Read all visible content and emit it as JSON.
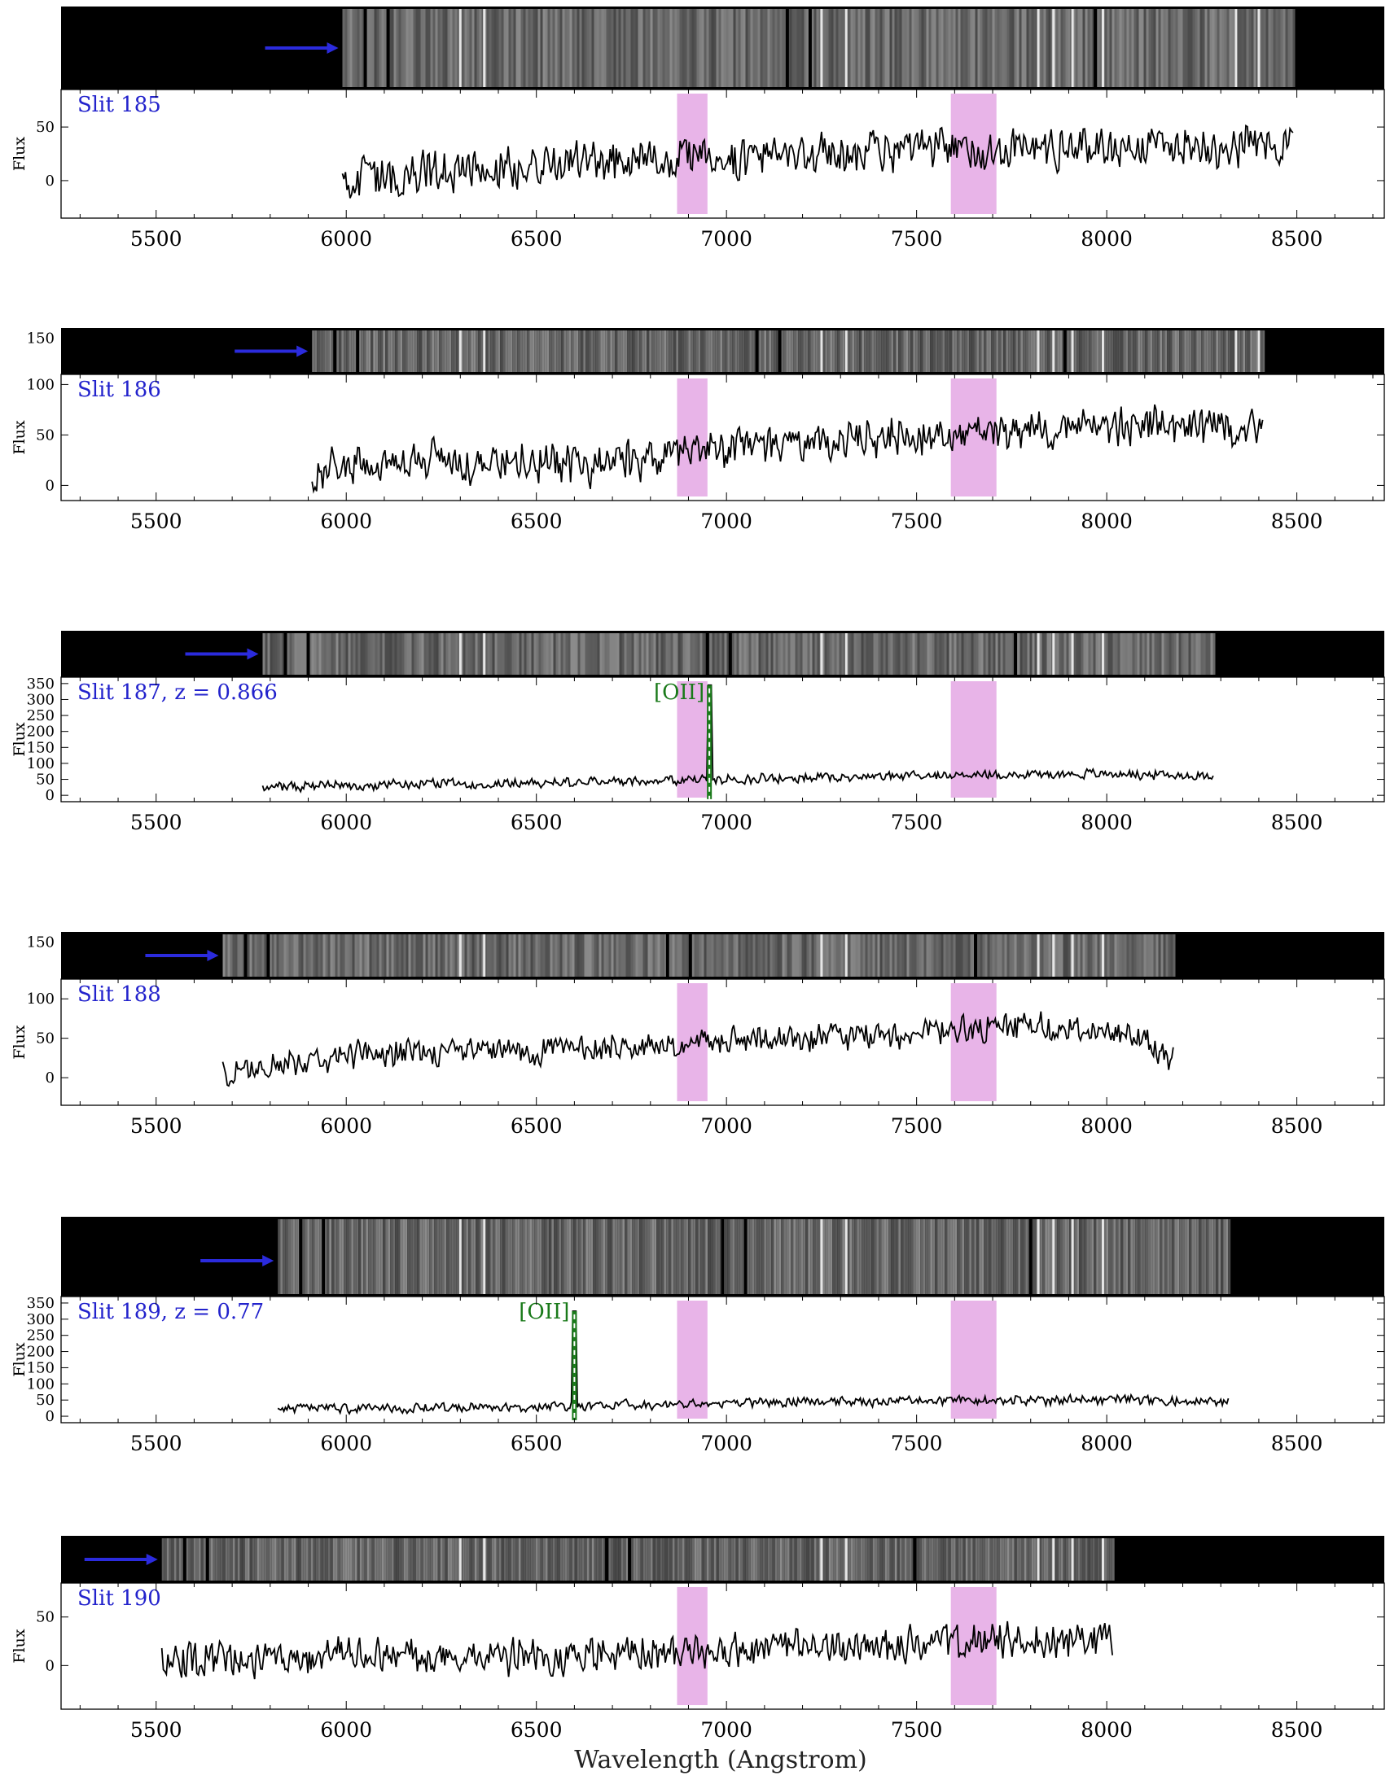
{
  "figure": {
    "xlabel": "Wavelength (Angstrom)",
    "ylabel": "Flux"
  },
  "colors": {
    "spectrum": "#000000",
    "telluric_band": "#e8b4e8",
    "slit_label": "#2222cc",
    "arrow": "#2b2bdd",
    "emission_line": "#1a7a1a",
    "image_bg": "#000000"
  },
  "chart_data": {
    "type": "line",
    "xlim": [
      5250,
      8730
    ],
    "x_ticks": [
      5500,
      6000,
      6500,
      7000,
      7500,
      8000,
      8500
    ],
    "x_tick_labels": [
      "5500",
      "6000",
      "6500",
      "7000",
      "7500",
      "8000",
      "8500"
    ],
    "telluric_bands": [
      [
        6870,
        6950
      ],
      [
        7590,
        7710
      ]
    ],
    "panels": [
      {
        "slit": "Slit 185",
        "wave_start": 5990,
        "wave_end": 8490,
        "ylim": [
          -35,
          85
        ],
        "y_ticks": [
          0,
          50
        ],
        "y_tick_labels": [
          "0",
          "50"
        ],
        "baseline": [
          [
            5990,
            0
          ],
          [
            6500,
            15
          ],
          [
            7000,
            22
          ],
          [
            7500,
            28
          ],
          [
            8000,
            32
          ],
          [
            8490,
            35
          ]
        ],
        "noise": 16,
        "seed": 185,
        "strip_image": true
      },
      {
        "slit": "Slit 186",
        "wave_start": 5910,
        "wave_end": 8410,
        "ylim": [
          -15,
          110
        ],
        "y_ticks": [
          0,
          50,
          100
        ],
        "y_tick_labels": [
          "0",
          "50",
          "100"
        ],
        "strip_ticks": [
          150
        ],
        "strip_tick_labels": [
          "150"
        ],
        "baseline": [
          [
            5910,
            15
          ],
          [
            6300,
            25
          ],
          [
            6700,
            20
          ],
          [
            7000,
            38
          ],
          [
            7500,
            50
          ],
          [
            8000,
            60
          ],
          [
            8410,
            55
          ]
        ],
        "noise": 16,
        "seed": 186,
        "strip_image": true
      },
      {
        "slit": "Slit 187, z = 0.866",
        "wave_start": 5780,
        "wave_end": 8280,
        "ylim": [
          -20,
          370
        ],
        "y_ticks": [
          0,
          50,
          100,
          150,
          200,
          250,
          300,
          350
        ],
        "y_tick_labels": [
          "0",
          "50",
          "100",
          "150",
          "200",
          "250",
          "300",
          "350"
        ],
        "baseline": [
          [
            5780,
            28
          ],
          [
            6500,
            40
          ],
          [
            7000,
            50
          ],
          [
            7500,
            62
          ],
          [
            8000,
            68
          ],
          [
            8280,
            60
          ]
        ],
        "noise": 12,
        "seed": 187,
        "line_label": "[OII]",
        "line_wave": 6955,
        "line_peak": 345,
        "strip_image": true
      },
      {
        "slit": "Slit 188",
        "wave_start": 5675,
        "wave_end": 8175,
        "ylim": [
          -35,
          125
        ],
        "y_ticks": [
          0,
          50,
          100
        ],
        "y_tick_labels": [
          "0",
          "50",
          "100"
        ],
        "strip_ticks": [
          150
        ],
        "strip_tick_labels": [
          "150"
        ],
        "baseline": [
          [
            5675,
            5
          ],
          [
            6000,
            30
          ],
          [
            6500,
            35
          ],
          [
            7000,
            45
          ],
          [
            7500,
            55
          ],
          [
            7800,
            68
          ],
          [
            8100,
            50
          ],
          [
            8175,
            25
          ]
        ],
        "noise": 14,
        "seed": 188,
        "strip_image": true
      },
      {
        "slit": "Slit 189, z = 0.77",
        "wave_start": 5820,
        "wave_end": 8320,
        "ylim": [
          -20,
          370
        ],
        "y_ticks": [
          0,
          50,
          100,
          150,
          200,
          250,
          300,
          350
        ],
        "y_tick_labels": [
          "0",
          "50",
          "100",
          "150",
          "200",
          "250",
          "300",
          "350"
        ],
        "baseline": [
          [
            5820,
            25
          ],
          [
            6500,
            28
          ],
          [
            7000,
            42
          ],
          [
            7500,
            48
          ],
          [
            8000,
            52
          ],
          [
            8320,
            45
          ]
        ],
        "noise": 12,
        "seed": 189,
        "line_label": "[OII]",
        "line_wave": 6600,
        "line_peak": 325,
        "strip_image": true
      },
      {
        "slit": "Slit 190",
        "wave_start": 5515,
        "wave_end": 8015,
        "ylim": [
          -45,
          85
        ],
        "y_ticks": [
          0,
          50
        ],
        "y_tick_labels": [
          "0",
          "50"
        ],
        "baseline": [
          [
            5515,
            5
          ],
          [
            6000,
            10
          ],
          [
            6500,
            8
          ],
          [
            7000,
            15
          ],
          [
            7500,
            22
          ],
          [
            8015,
            28
          ]
        ],
        "noise": 15,
        "seed": 190,
        "strip_image": true
      }
    ]
  }
}
